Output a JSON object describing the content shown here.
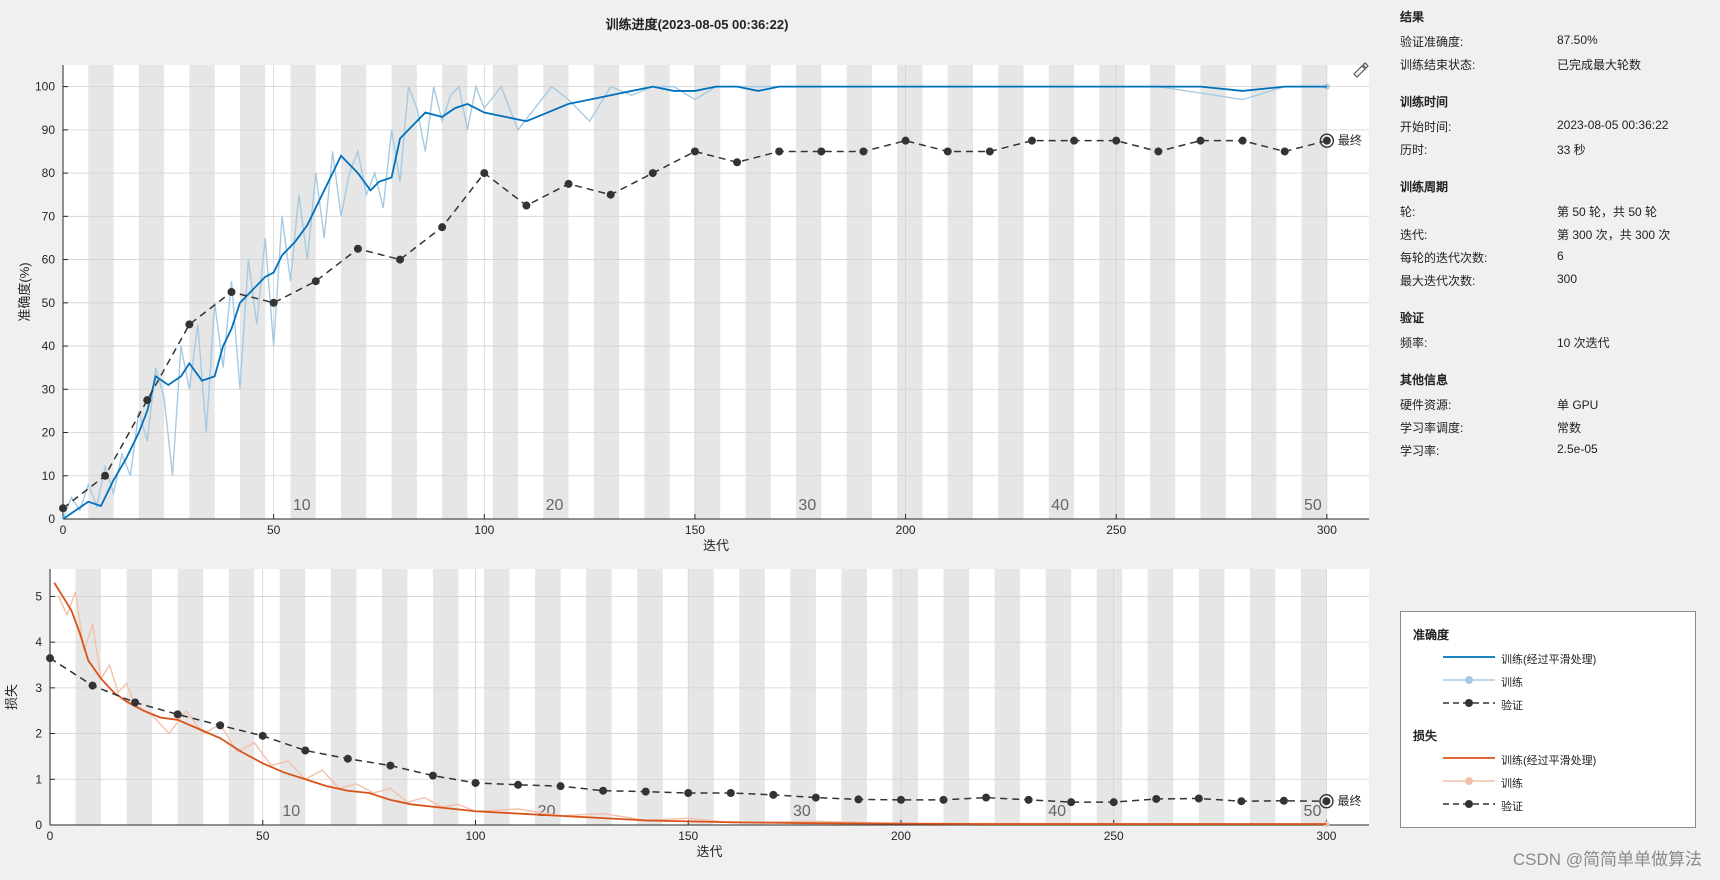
{
  "window": {
    "title": "训练进度(2023-08-05 00:36:22)",
    "watermark": "CSDN @简简单单做算法"
  },
  "info_panel": {
    "sections": [
      {
        "title": "结果",
        "rows": [
          {
            "key": "验证准确度:",
            "value": "87.50%"
          },
          {
            "key": "训练结束状态:",
            "value": "已完成最大轮数"
          }
        ]
      },
      {
        "title": "训练时间",
        "rows": [
          {
            "key": "开始时间:",
            "value": "2023-08-05 00:36:22"
          },
          {
            "key": "历时:",
            "value": "33 秒"
          }
        ]
      },
      {
        "title": "训练周期",
        "rows": [
          {
            "key": "轮:",
            "value": "第 50 轮，共 50 轮"
          },
          {
            "key": "迭代:",
            "value": "第 300 次，共 300 次"
          },
          {
            "key": "每轮的迭代次数:",
            "value": "6"
          },
          {
            "key": "最大迭代次数:",
            "value": "300"
          }
        ]
      },
      {
        "title": "验证",
        "rows": [
          {
            "key": "频率:",
            "value": "10 次迭代"
          }
        ]
      },
      {
        "title": "其他信息",
        "rows": [
          {
            "key": "硬件资源:",
            "value": "单 GPU"
          },
          {
            "key": "学习率调度:",
            "value": "常数"
          },
          {
            "key": "学习率:",
            "value": "2.5e-05"
          }
        ]
      }
    ]
  },
  "legend": {
    "groups": [
      {
        "title": "准确度",
        "items": [
          {
            "label": "训练(经过平滑处理)",
            "color": "#0072bd",
            "style": "solid"
          },
          {
            "label": "训练",
            "color": "#a6cae3",
            "style": "marker"
          },
          {
            "label": "验证",
            "color": "#333333",
            "style": "dashed-marker"
          }
        ]
      },
      {
        "title": "损失",
        "items": [
          {
            "label": "训练(经过平滑处理)",
            "color": "#d95319",
            "style": "solid"
          },
          {
            "label": "训练",
            "color": "#f2c1ac",
            "style": "marker"
          },
          {
            "label": "验证",
            "color": "#333333",
            "style": "dashed-marker"
          }
        ]
      }
    ]
  },
  "chart_data": [
    {
      "type": "line",
      "name": "accuracy",
      "xlabel": "迭代",
      "ylabel": "准确度(%)",
      "xlim": [
        0,
        310
      ],
      "ylim": [
        0,
        105
      ],
      "xticks": [
        0,
        50,
        100,
        150,
        200,
        250,
        300
      ],
      "yticks": [
        0,
        10,
        20,
        30,
        40,
        50,
        60,
        70,
        80,
        90,
        100
      ],
      "grid": true,
      "iterations_per_epoch": 6,
      "epochs": 50,
      "epoch_labels": [
        10,
        20,
        30,
        40,
        50
      ],
      "final_label": "最终",
      "colors": {
        "smoothed": "#0072bd",
        "raw": "#a6cae3",
        "validation": "#333333"
      },
      "smoothed": {
        "x": [
          0,
          3,
          6,
          9,
          12,
          15,
          18,
          20,
          22,
          25,
          28,
          30,
          33,
          36,
          38,
          40,
          42,
          45,
          48,
          50,
          52,
          55,
          58,
          60,
          63,
          66,
          70,
          73,
          75,
          78,
          80,
          83,
          86,
          90,
          93,
          96,
          100,
          105,
          110,
          115,
          120,
          125,
          130,
          135,
          140,
          145,
          150,
          155,
          160,
          165,
          170,
          180,
          190,
          200,
          210,
          220,
          230,
          240,
          250,
          260,
          270,
          280,
          290,
          300
        ],
        "y": [
          0,
          2,
          4,
          3,
          9,
          14,
          20,
          25,
          33,
          31,
          33,
          36,
          32,
          33,
          40,
          44,
          50,
          53,
          56,
          57,
          61,
          64,
          68,
          72,
          78,
          84,
          80,
          76,
          78,
          79,
          88,
          91,
          94,
          93,
          95,
          96,
          94,
          93,
          92,
          94,
          96,
          97,
          98,
          99,
          100,
          99,
          99,
          100,
          100,
          99,
          100,
          100,
          100,
          100,
          100,
          100,
          100,
          100,
          100,
          100,
          100,
          99,
          100,
          100
        ]
      },
      "raw": {
        "x": [
          0,
          2,
          4,
          6,
          8,
          10,
          12,
          14,
          16,
          18,
          20,
          22,
          24,
          26,
          28,
          30,
          32,
          34,
          36,
          38,
          40,
          42,
          44,
          46,
          48,
          50,
          52,
          54,
          56,
          58,
          60,
          62,
          64,
          66,
          68,
          70,
          72,
          74,
          76,
          78,
          80,
          82,
          84,
          86,
          88,
          90,
          92,
          94,
          96,
          98,
          100,
          104,
          108,
          112,
          116,
          120,
          125,
          130,
          135,
          140,
          145,
          150,
          155,
          160,
          170,
          180,
          200,
          230,
          260,
          280,
          290,
          300
        ],
        "y": [
          0,
          5,
          2,
          8,
          3,
          12,
          6,
          15,
          10,
          25,
          18,
          35,
          28,
          10,
          40,
          30,
          45,
          20,
          50,
          35,
          55,
          30,
          60,
          45,
          65,
          40,
          70,
          55,
          75,
          60,
          80,
          65,
          85,
          70,
          80,
          85,
          75,
          80,
          72,
          90,
          78,
          100,
          95,
          85,
          100,
          92,
          98,
          100,
          90,
          100,
          95,
          100,
          90,
          95,
          100,
          97,
          92,
          100,
          98,
          100,
          100,
          97,
          100,
          100,
          100,
          100,
          100,
          100,
          100,
          97,
          100,
          100
        ]
      },
      "validation": {
        "x": [
          0,
          10,
          20,
          30,
          40,
          50,
          60,
          70,
          80,
          90,
          100,
          110,
          120,
          130,
          140,
          150,
          160,
          170,
          180,
          190,
          200,
          210,
          220,
          230,
          240,
          250,
          260,
          270,
          280,
          290,
          300
        ],
        "y": [
          2.5,
          10,
          27.5,
          45,
          52.5,
          50,
          55,
          62.5,
          60,
          67.5,
          80,
          72.5,
          77.5,
          75,
          80,
          85,
          82.5,
          85,
          85,
          85,
          87.5,
          85,
          85,
          87.5,
          87.5,
          87.5,
          85,
          87.5,
          87.5,
          85,
          87.5
        ]
      }
    },
    {
      "type": "line",
      "name": "loss",
      "xlabel": "迭代",
      "ylabel": "损失",
      "xlim": [
        0,
        310
      ],
      "ylim": [
        0,
        5.6
      ],
      "xticks": [
        0,
        50,
        100,
        150,
        200,
        250,
        300
      ],
      "yticks": [
        0,
        1,
        2,
        3,
        4,
        5
      ],
      "grid": true,
      "iterations_per_epoch": 6,
      "epochs": 50,
      "epoch_labels": [
        10,
        20,
        30,
        40,
        50
      ],
      "final_label": "最终",
      "colors": {
        "smoothed": "#d95319",
        "raw": "#f2c1ac",
        "validation": "#333333"
      },
      "smoothed": {
        "x": [
          1,
          3,
          5,
          7,
          9,
          12,
          15,
          18,
          22,
          26,
          30,
          35,
          40,
          45,
          50,
          55,
          60,
          65,
          70,
          75,
          80,
          85,
          90,
          95,
          100,
          110,
          120,
          130,
          140,
          150,
          160,
          170,
          180,
          200,
          220,
          250,
          280,
          300
        ],
        "y": [
          5.3,
          5.0,
          4.7,
          4.2,
          3.6,
          3.2,
          2.9,
          2.7,
          2.5,
          2.35,
          2.3,
          2.1,
          1.9,
          1.6,
          1.35,
          1.15,
          1.0,
          0.85,
          0.75,
          0.7,
          0.55,
          0.45,
          0.4,
          0.35,
          0.3,
          0.25,
          0.2,
          0.15,
          0.1,
          0.08,
          0.06,
          0.05,
          0.04,
          0.03,
          0.02,
          0.02,
          0.02,
          0.02
        ]
      },
      "raw": {
        "x": [
          2,
          4,
          6,
          8,
          10,
          12,
          14,
          16,
          18,
          20,
          24,
          28,
          32,
          36,
          40,
          44,
          48,
          52,
          56,
          60,
          64,
          68,
          72,
          76,
          80,
          84,
          88,
          92,
          96,
          100,
          110,
          120,
          130,
          140,
          150,
          160,
          180,
          200,
          250,
          300
        ],
        "y": [
          5.0,
          4.6,
          5.1,
          3.8,
          4.4,
          3.2,
          3.5,
          2.9,
          3.1,
          2.6,
          2.4,
          2.0,
          2.5,
          2.0,
          2.2,
          1.6,
          1.8,
          1.3,
          1.4,
          1.0,
          1.2,
          0.8,
          0.9,
          0.7,
          0.8,
          0.5,
          0.6,
          0.4,
          0.45,
          0.3,
          0.35,
          0.2,
          0.25,
          0.1,
          0.15,
          0.05,
          0.08,
          0.03,
          0.03,
          0.02
        ]
      },
      "validation": {
        "x": [
          0,
          10,
          20,
          30,
          40,
          50,
          60,
          70,
          80,
          90,
          100,
          110,
          120,
          130,
          140,
          150,
          160,
          170,
          180,
          190,
          200,
          210,
          220,
          230,
          240,
          250,
          260,
          270,
          280,
          290,
          300
        ],
        "y": [
          3.65,
          3.05,
          2.68,
          2.42,
          2.18,
          1.95,
          1.63,
          1.45,
          1.3,
          1.08,
          0.92,
          0.88,
          0.85,
          0.75,
          0.73,
          0.7,
          0.7,
          0.66,
          0.6,
          0.56,
          0.55,
          0.55,
          0.6,
          0.55,
          0.5,
          0.5,
          0.57,
          0.58,
          0.52,
          0.53,
          0.52
        ]
      }
    }
  ]
}
